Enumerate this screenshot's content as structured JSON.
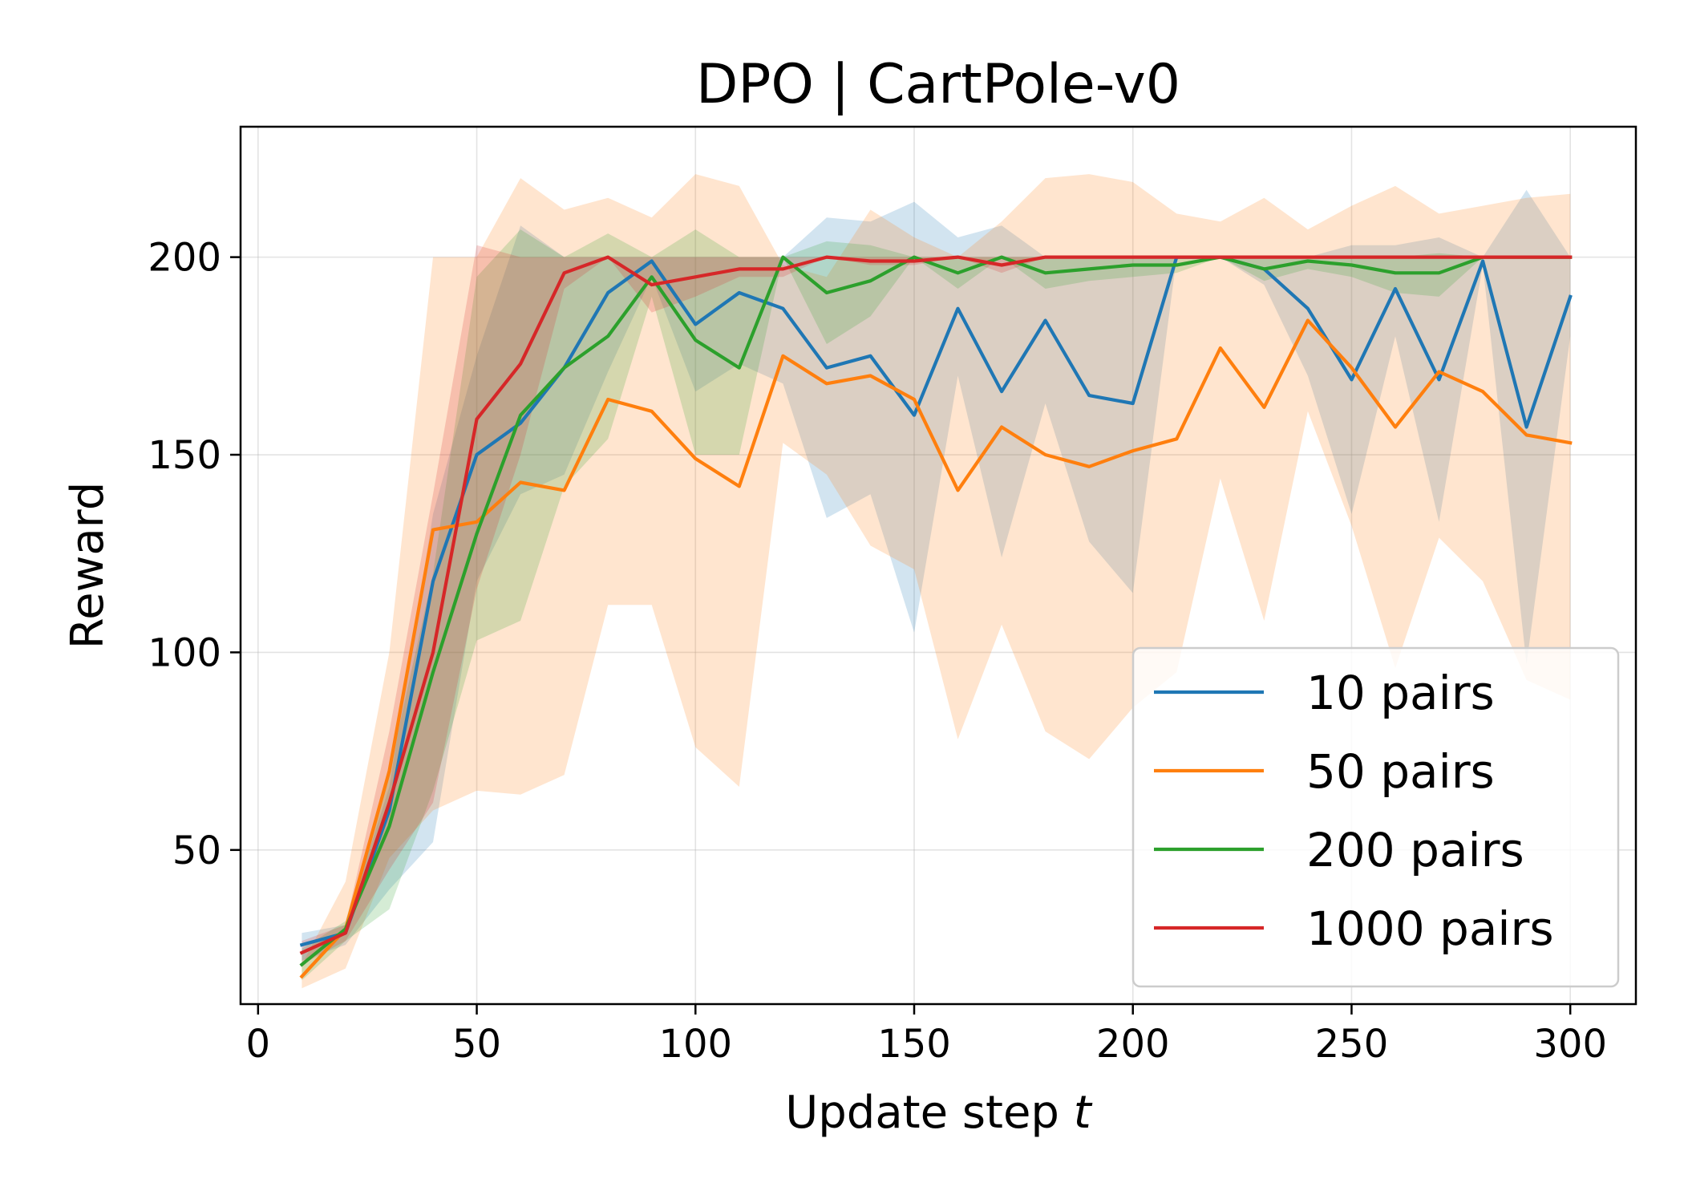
{
  "chart_data": {
    "type": "line",
    "title": "DPO | CartPole-v0",
    "xlabel": "Update step ",
    "xlabel_var": "t",
    "ylabel": "Reward",
    "xlim": [
      -4,
      315
    ],
    "ylim": [
      11,
      233
    ],
    "xticks": [
      0,
      50,
      100,
      150,
      200,
      250,
      300
    ],
    "yticks": [
      50,
      100,
      150,
      200
    ],
    "xtick_labels": [
      "0",
      "50",
      "100",
      "150",
      "200",
      "250",
      "300"
    ],
    "ytick_labels": [
      "50",
      "100",
      "150",
      "200"
    ],
    "grid": true,
    "legend_position": "lower-right",
    "x": [
      10,
      20,
      30,
      40,
      50,
      60,
      70,
      80,
      90,
      100,
      110,
      120,
      130,
      140,
      150,
      160,
      170,
      180,
      190,
      200,
      210,
      220,
      230,
      240,
      250,
      260,
      270,
      280,
      290,
      300
    ],
    "series": [
      {
        "name": "10 pairs",
        "color": "#1f77b4",
        "values": [
          26,
          29,
          60,
          118,
          150,
          158,
          172,
          191,
          199,
          183,
          191,
          187,
          172,
          175,
          160,
          187,
          166,
          184,
          165,
          163,
          200,
          200,
          197,
          187,
          169,
          192,
          169,
          199,
          157,
          190
        ],
        "upper": [
          29,
          31,
          66,
          135,
          175,
          208,
          200,
          200,
          200,
          200,
          200,
          200,
          210,
          209,
          214,
          205,
          208,
          200,
          200,
          200,
          200,
          200,
          200,
          200,
          203,
          203,
          205,
          200,
          217,
          200
        ],
        "lower": [
          22,
          26,
          40,
          52,
          118,
          140,
          145,
          171,
          195,
          166,
          173,
          168,
          134,
          140,
          105,
          170,
          124,
          163,
          128,
          115,
          200,
          200,
          193,
          170,
          135,
          180,
          133,
          198,
          97,
          180
        ]
      },
      {
        "name": "50 pairs",
        "color": "#ff7f0e",
        "values": [
          18,
          30,
          70,
          131,
          133,
          143,
          141,
          164,
          161,
          149,
          142,
          175,
          168,
          170,
          164,
          141,
          157,
          150,
          147,
          151,
          154,
          177,
          162,
          184,
          172,
          157,
          171,
          166,
          155,
          153
        ],
        "upper": [
          21,
          42,
          100,
          200,
          200,
          220,
          212,
          215,
          210,
          221,
          218,
          198,
          195,
          212,
          205,
          200,
          209,
          220,
          221,
          219,
          211,
          209,
          215,
          207,
          213,
          218,
          211,
          213,
          215,
          216
        ],
        "lower": [
          15,
          20,
          48,
          60,
          65,
          64,
          69,
          112,
          112,
          76,
          66,
          153,
          145,
          127,
          121,
          78,
          107,
          80,
          73,
          86,
          95,
          144,
          108,
          161,
          132,
          96,
          129,
          118,
          93,
          88
        ]
      },
      {
        "name": "200 pairs",
        "color": "#2ca02c",
        "values": [
          21,
          30,
          56,
          95,
          130,
          160,
          172,
          180,
          195,
          179,
          172,
          200,
          191,
          194,
          200,
          196,
          200,
          196,
          197,
          198,
          198,
          200,
          197,
          199,
          198,
          196,
          196,
          200,
          200,
          200
        ],
        "upper": [
          25,
          32,
          70,
          120,
          195,
          207,
          200,
          206,
          200,
          207,
          200,
          200,
          204,
          203,
          200,
          200,
          200,
          200,
          200,
          200,
          200,
          200,
          200,
          200,
          200,
          200,
          201,
          200,
          200,
          200
        ],
        "lower": [
          17,
          27,
          35,
          65,
          103,
          108,
          142,
          154,
          190,
          150,
          150,
          200,
          178,
          185,
          200,
          192,
          200,
          192,
          194,
          195,
          196,
          200,
          194,
          197,
          195,
          191,
          190,
          200,
          200,
          200
        ]
      },
      {
        "name": "1000 pairs",
        "color": "#d62728",
        "values": [
          24,
          29,
          62,
          100,
          159,
          173,
          196,
          200,
          193,
          195,
          197,
          197,
          200,
          199,
          199,
          200,
          198,
          200,
          200,
          200,
          200,
          200,
          200,
          200,
          200,
          200,
          200,
          200,
          200,
          200
        ],
        "upper": [
          27,
          31,
          80,
          140,
          203,
          200,
          200,
          200,
          200,
          200,
          200,
          200,
          200,
          200,
          200,
          200,
          200,
          200,
          200,
          200,
          200,
          200,
          200,
          200,
          200,
          200,
          200,
          200,
          200,
          200
        ],
        "lower": [
          21,
          27,
          45,
          62,
          116,
          150,
          192,
          200,
          186,
          190,
          195,
          195,
          200,
          198,
          198,
          200,
          196,
          200,
          200,
          200,
          200,
          200,
          200,
          200,
          200,
          200,
          200,
          200,
          200,
          200
        ]
      }
    ]
  }
}
